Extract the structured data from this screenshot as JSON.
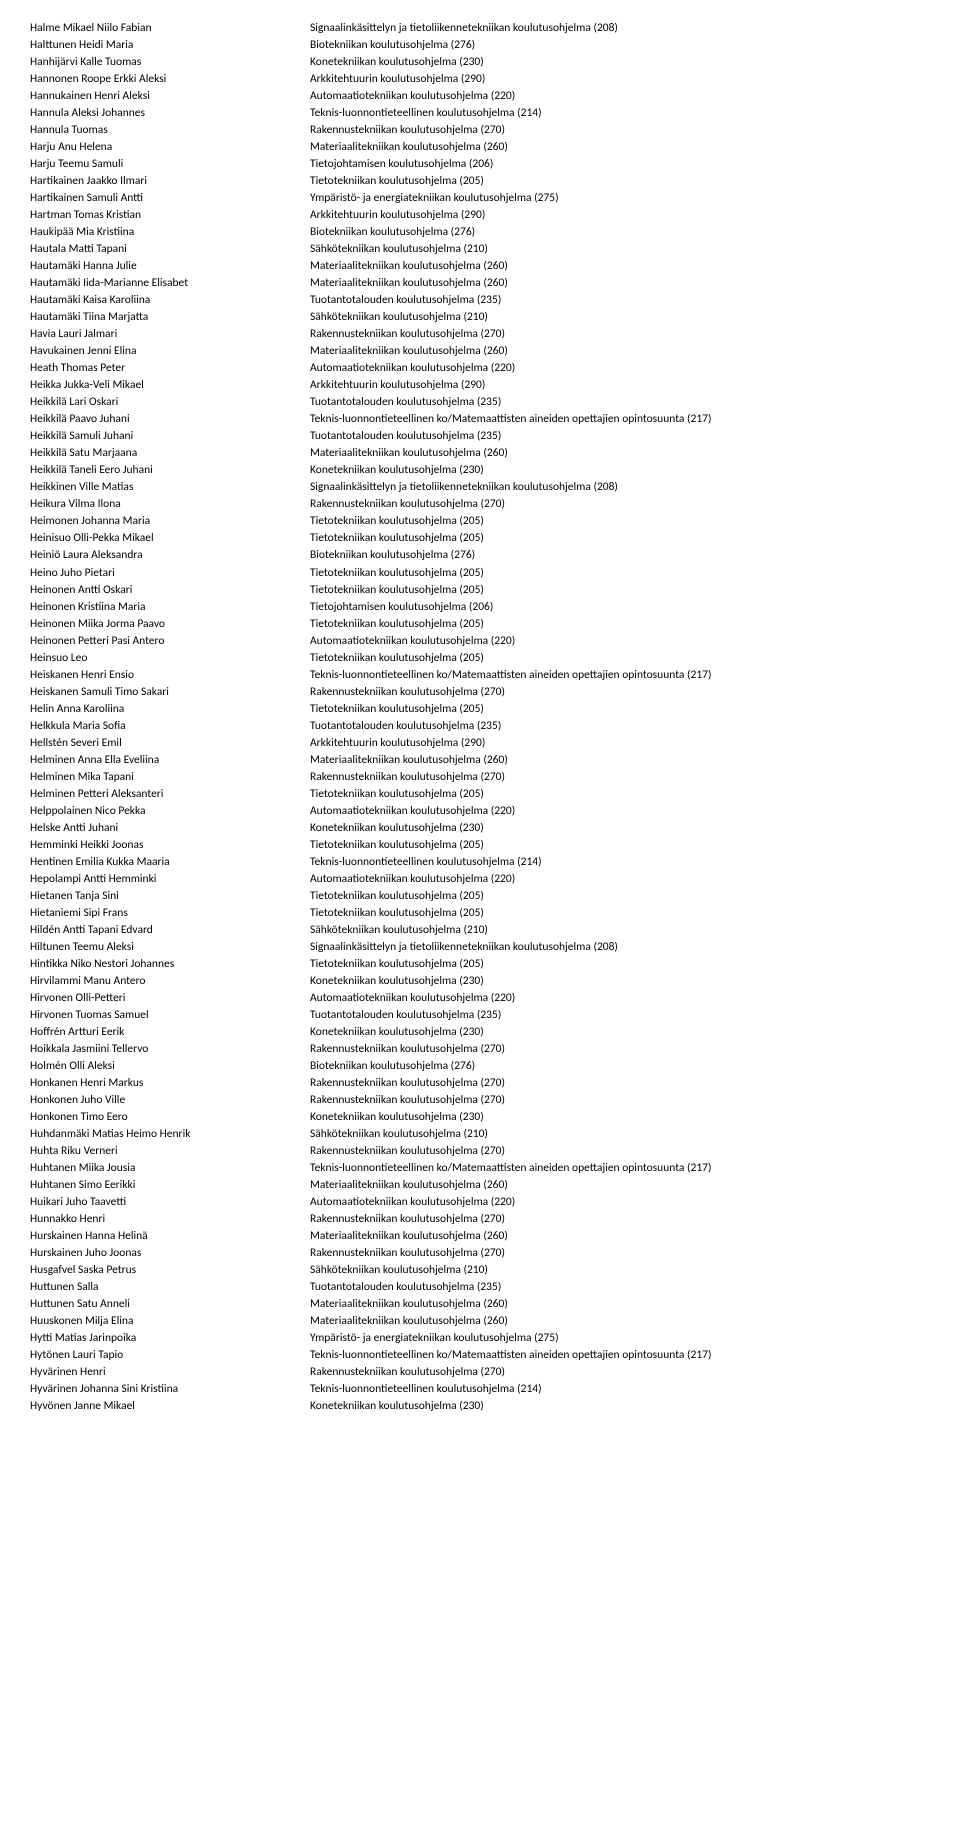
{
  "rows": [
    {
      "name": "Halme Mikael Niilo Fabian",
      "prog": "Signaalinkäsittelyn ja tietoliikennetekniikan koulutusohjelma (208)"
    },
    {
      "name": "Halttunen Heidi Maria",
      "prog": "Biotekniikan koulutusohjelma (276)"
    },
    {
      "name": "Hanhijärvi Kalle Tuomas",
      "prog": "Konetekniikan koulutusohjelma (230)"
    },
    {
      "name": "Hannonen Roope Erkki Aleksi",
      "prog": "Arkkitehtuurin koulutusohjelma (290)"
    },
    {
      "name": "Hannukainen Henri Aleksi",
      "prog": "Automaatiotekniikan koulutusohjelma (220)"
    },
    {
      "name": "Hannula Aleksi Johannes",
      "prog": "Teknis-luonnontieteellinen koulutusohjelma (214)"
    },
    {
      "name": "Hannula Tuomas",
      "prog": "Rakennustekniikan koulutusohjelma (270)"
    },
    {
      "name": "Harju Anu Helena",
      "prog": "Materiaalitekniikan koulutusohjelma (260)"
    },
    {
      "name": "Harju Teemu Samuli",
      "prog": "Tietojohtamisen koulutusohjelma (206)"
    },
    {
      "name": "Hartikainen Jaakko Ilmari",
      "prog": "Tietotekniikan koulutusohjelma (205)"
    },
    {
      "name": "Hartikainen Samuli Antti",
      "prog": "Ympäristö- ja energiatekniikan koulutusohjelma (275)"
    },
    {
      "name": "Hartman Tomas Kristian",
      "prog": "Arkkitehtuurin koulutusohjelma (290)"
    },
    {
      "name": "Haukipää Mia Kristiina",
      "prog": "Biotekniikan koulutusohjelma (276)"
    },
    {
      "name": "Hautala Matti Tapani",
      "prog": "Sähkötekniikan koulutusohjelma (210)"
    },
    {
      "name": "Hautamäki Hanna Julie",
      "prog": "Materiaalitekniikan koulutusohjelma (260)"
    },
    {
      "name": "Hautamäki Iida-Marianne Elisabet",
      "prog": "Materiaalitekniikan koulutusohjelma (260)"
    },
    {
      "name": "Hautamäki Kaisa Karoliina",
      "prog": "Tuotantotalouden koulutusohjelma (235)"
    },
    {
      "name": "Hautamäki Tiina Marjatta",
      "prog": "Sähkötekniikan koulutusohjelma (210)"
    },
    {
      "name": "Havia Lauri Jalmari",
      "prog": "Rakennustekniikan koulutusohjelma (270)"
    },
    {
      "name": "Havukainen Jenni Elina",
      "prog": "Materiaalitekniikan koulutusohjelma (260)"
    },
    {
      "name": "Heath Thomas Peter",
      "prog": "Automaatiotekniikan koulutusohjelma (220)"
    },
    {
      "name": "Heikka Jukka-Veli Mikael",
      "prog": "Arkkitehtuurin koulutusohjelma (290)"
    },
    {
      "name": "Heikkilä Lari Oskari",
      "prog": "Tuotantotalouden koulutusohjelma (235)"
    },
    {
      "name": "Heikkilä Paavo Juhani",
      "prog": "Teknis-luonnontieteellinen ko/Matemaattisten aineiden opettajien opintosuunta (217)"
    },
    {
      "name": "Heikkilä Samuli Juhani",
      "prog": "Tuotantotalouden koulutusohjelma (235)"
    },
    {
      "name": "Heikkilä Satu Marjaana",
      "prog": "Materiaalitekniikan koulutusohjelma (260)"
    },
    {
      "name": "Heikkilä Taneli Eero Juhani",
      "prog": "Konetekniikan koulutusohjelma (230)"
    },
    {
      "name": "Heikkinen Ville Matias",
      "prog": "Signaalinkäsittelyn ja tietoliikennetekniikan koulutusohjelma (208)"
    },
    {
      "name": "Heikura Vilma Ilona",
      "prog": "Rakennustekniikan koulutusohjelma (270)"
    },
    {
      "name": "Heimonen Johanna Maria",
      "prog": "Tietotekniikan koulutusohjelma (205)"
    },
    {
      "name": "Heinisuo Olli-Pekka Mikael",
      "prog": "Tietotekniikan koulutusohjelma (205)"
    },
    {
      "name": "Heiniö Laura Aleksandra",
      "prog": "Biotekniikan koulutusohjelma (276)"
    },
    {
      "name": "Heino Juho Pietari",
      "prog": "Tietotekniikan koulutusohjelma (205)"
    },
    {
      "name": "Heinonen Antti Oskari",
      "prog": "Tietotekniikan koulutusohjelma (205)"
    },
    {
      "name": "Heinonen Kristiina Maria",
      "prog": "Tietojohtamisen koulutusohjelma (206)"
    },
    {
      "name": "Heinonen Miika Jorma Paavo",
      "prog": "Tietotekniikan koulutusohjelma (205)"
    },
    {
      "name": "Heinonen Petteri Pasi Antero",
      "prog": "Automaatiotekniikan koulutusohjelma (220)"
    },
    {
      "name": "Heinsuo Leo",
      "prog": "Tietotekniikan koulutusohjelma (205)"
    },
    {
      "name": "Heiskanen Henri Ensio",
      "prog": "Teknis-luonnontieteellinen ko/Matemaattisten aineiden opettajien opintosuunta (217)"
    },
    {
      "name": "Heiskanen Samuli Timo Sakari",
      "prog": "Rakennustekniikan koulutusohjelma (270)"
    },
    {
      "name": "Helin Anna Karoliina",
      "prog": "Tietotekniikan koulutusohjelma (205)"
    },
    {
      "name": "Helkkula Maria Sofia",
      "prog": "Tuotantotalouden koulutusohjelma (235)"
    },
    {
      "name": "Hellstén Severi Emil",
      "prog": "Arkkitehtuurin koulutusohjelma (290)"
    },
    {
      "name": "Helminen Anna Ella Eveliina",
      "prog": "Materiaalitekniikan koulutusohjelma (260)"
    },
    {
      "name": "Helminen Mika Tapani",
      "prog": "Rakennustekniikan koulutusohjelma (270)"
    },
    {
      "name": "Helminen Petteri Aleksanteri",
      "prog": "Tietotekniikan koulutusohjelma (205)"
    },
    {
      "name": "Helppolainen Nico Pekka",
      "prog": "Automaatiotekniikan koulutusohjelma (220)"
    },
    {
      "name": "Helske Antti Juhani",
      "prog": "Konetekniikan koulutusohjelma (230)"
    },
    {
      "name": "Hemminki Heikki Joonas",
      "prog": "Tietotekniikan koulutusohjelma (205)"
    },
    {
      "name": "Hentinen Emilia Kukka Maaria",
      "prog": "Teknis-luonnontieteellinen koulutusohjelma (214)"
    },
    {
      "name": "Hepolampi Antti Hemminki",
      "prog": "Automaatiotekniikan koulutusohjelma (220)"
    },
    {
      "name": "Hietanen Tanja Sini",
      "prog": "Tietotekniikan koulutusohjelma (205)"
    },
    {
      "name": "Hietaniemi Sipi Frans",
      "prog": "Tietotekniikan koulutusohjelma (205)"
    },
    {
      "name": "Hildén Antti Tapani Edvard",
      "prog": "Sähkötekniikan koulutusohjelma (210)"
    },
    {
      "name": "Hiltunen Teemu Aleksi",
      "prog": "Signaalinkäsittelyn ja tietoliikennetekniikan koulutusohjelma (208)"
    },
    {
      "name": "Hintikka Niko Nestori Johannes",
      "prog": "Tietotekniikan koulutusohjelma (205)"
    },
    {
      "name": "Hirvilammi Manu Antero",
      "prog": "Konetekniikan koulutusohjelma (230)"
    },
    {
      "name": "Hirvonen Olli-Petteri",
      "prog": "Automaatiotekniikan koulutusohjelma (220)"
    },
    {
      "name": "Hirvonen Tuomas Samuel",
      "prog": "Tuotantotalouden koulutusohjelma (235)"
    },
    {
      "name": "Hoffrén Artturi Eerik",
      "prog": "Konetekniikan koulutusohjelma (230)"
    },
    {
      "name": "Hoikkala Jasmiini Tellervo",
      "prog": "Rakennustekniikan koulutusohjelma (270)"
    },
    {
      "name": "Holmén Olli Aleksi",
      "prog": "Biotekniikan koulutusohjelma (276)"
    },
    {
      "name": "Honkanen Henri Markus",
      "prog": "Rakennustekniikan koulutusohjelma (270)"
    },
    {
      "name": "Honkonen Juho Ville",
      "prog": "Rakennustekniikan koulutusohjelma (270)"
    },
    {
      "name": "Honkonen Timo Eero",
      "prog": "Konetekniikan koulutusohjelma (230)"
    },
    {
      "name": "Huhdanmäki Matias Heimo Henrik",
      "prog": "Sähkötekniikan koulutusohjelma (210)"
    },
    {
      "name": "Huhta Riku Verneri",
      "prog": "Rakennustekniikan koulutusohjelma (270)"
    },
    {
      "name": "Huhtanen Miika Jousia",
      "prog": "Teknis-luonnontieteellinen ko/Matemaattisten aineiden opettajien opintosuunta (217)"
    },
    {
      "name": "Huhtanen Simo Eerikki",
      "prog": "Materiaalitekniikan koulutusohjelma (260)"
    },
    {
      "name": "Huikari Juho Taavetti",
      "prog": "Automaatiotekniikan koulutusohjelma (220)"
    },
    {
      "name": "Hunnakko Henri",
      "prog": "Rakennustekniikan koulutusohjelma (270)"
    },
    {
      "name": "Hurskainen Hanna Helinä",
      "prog": "Materiaalitekniikan koulutusohjelma (260)"
    },
    {
      "name": "Hurskainen Juho Joonas",
      "prog": "Rakennustekniikan koulutusohjelma (270)"
    },
    {
      "name": "Husgafvel Saska Petrus",
      "prog": "Sähkötekniikan koulutusohjelma (210)"
    },
    {
      "name": "Huttunen Salla",
      "prog": "Tuotantotalouden koulutusohjelma (235)"
    },
    {
      "name": "Huttunen Satu Anneli",
      "prog": "Materiaalitekniikan koulutusohjelma (260)"
    },
    {
      "name": "Huuskonen Milja Elina",
      "prog": "Materiaalitekniikan koulutusohjelma (260)"
    },
    {
      "name": "Hytti Matias Jarinpoika",
      "prog": "Ympäristö- ja energiatekniikan koulutusohjelma (275)"
    },
    {
      "name": "Hytönen Lauri Tapio",
      "prog": "Teknis-luonnontieteellinen ko/Matemaattisten aineiden opettajien opintosuunta (217)"
    },
    {
      "name": "Hyvärinen Henri",
      "prog": "Rakennustekniikan koulutusohjelma (270)"
    },
    {
      "name": "Hyvärinen Johanna Sini Kristiina",
      "prog": "Teknis-luonnontieteellinen koulutusohjelma (214)"
    },
    {
      "name": "Hyvönen Janne Mikael",
      "prog": "Konetekniikan koulutusohjelma (230)"
    }
  ]
}
